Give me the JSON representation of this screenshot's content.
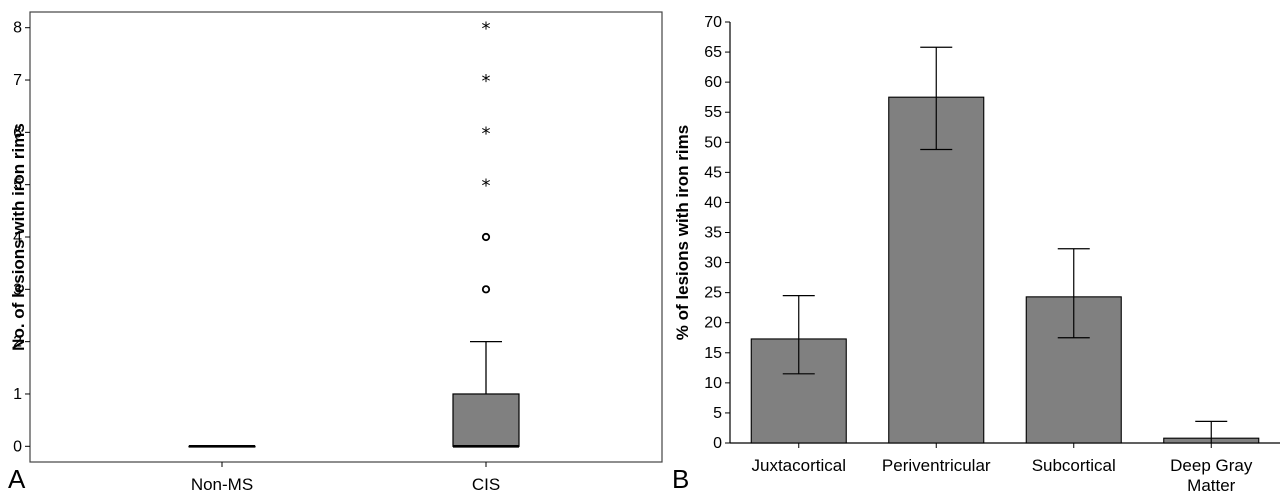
{
  "chart_data": [
    {
      "panel": "A",
      "type": "box",
      "ylabel": "No. of lesions with iron rims",
      "categories": [
        "Non-MS",
        "CIS"
      ],
      "ylim": [
        -0.3,
        8.3
      ],
      "yticks": [
        0,
        1,
        2,
        3,
        4,
        5,
        6,
        7,
        8
      ],
      "grid": false,
      "boxes": [
        {
          "category": "Non-MS",
          "min": 0,
          "q1": 0,
          "median": 0,
          "q3": 0,
          "max": 0,
          "outliers": [],
          "extremes": []
        },
        {
          "category": "CIS",
          "min": 0,
          "q1": 0,
          "median": 0,
          "q3": 1,
          "max": 2,
          "outliers": [
            3,
            4
          ],
          "extremes": [
            5,
            6,
            7,
            8
          ]
        }
      ]
    },
    {
      "panel": "B",
      "type": "bar",
      "ylabel": "% of lesions with iron rims",
      "categories": [
        "Juxtacortical",
        "Periventricular",
        "Subcortical",
        "Deep Gray Matter"
      ],
      "category_lines": [
        [
          "Juxtacortical"
        ],
        [
          "Periventricular"
        ],
        [
          "Subcortical"
        ],
        [
          "Deep Gray",
          "Matter"
        ]
      ],
      "values": [
        17.3,
        57.5,
        24.3,
        0.8
      ],
      "error_low": [
        11.5,
        48.8,
        17.5,
        0
      ],
      "error_high": [
        24.5,
        65.8,
        32.3,
        3.6
      ],
      "ylim": [
        0,
        70
      ],
      "yticks": [
        0,
        5,
        10,
        15,
        20,
        25,
        30,
        35,
        40,
        45,
        50,
        55,
        60,
        65,
        70
      ],
      "grid": false
    }
  ],
  "colors": {
    "box_fill": "#808080",
    "bar_fill": "#808080",
    "line": "#000000",
    "frame": "#444444"
  }
}
